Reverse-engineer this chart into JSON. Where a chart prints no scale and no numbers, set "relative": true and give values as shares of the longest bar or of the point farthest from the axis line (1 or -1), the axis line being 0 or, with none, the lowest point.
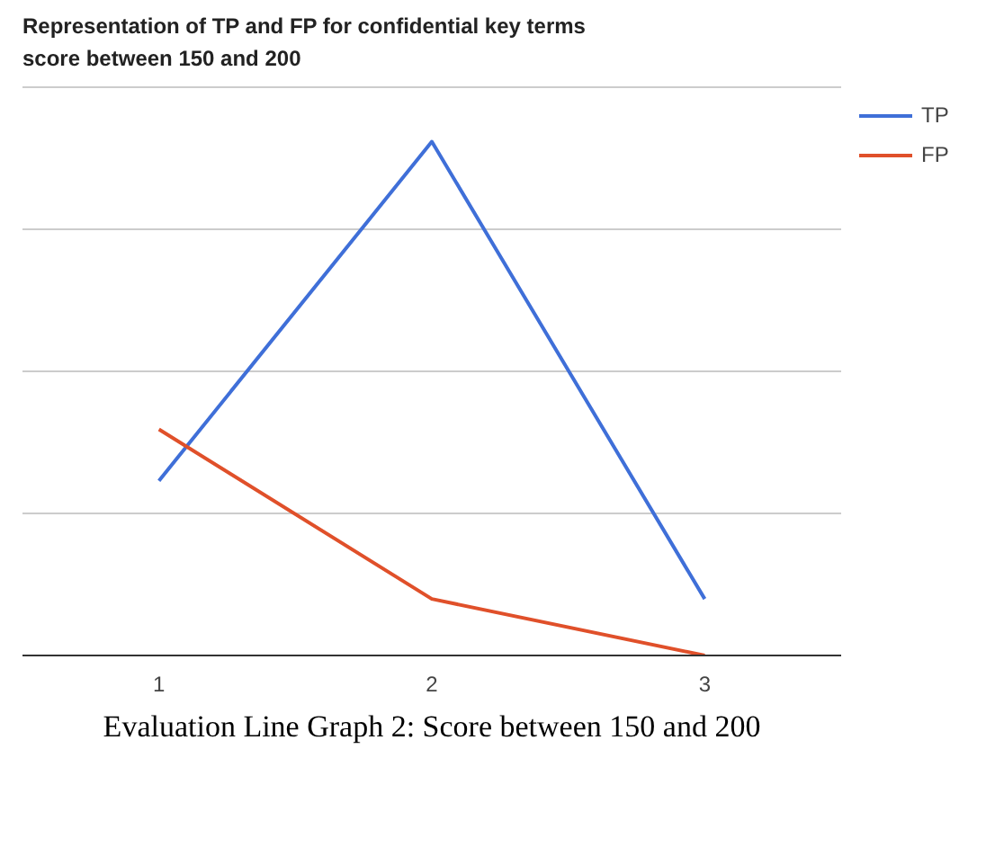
{
  "chart_data": {
    "type": "line",
    "title": "Representation of TP and FP for confidential key terms\nscore between 150 and 200",
    "categories": [
      "1",
      "2",
      "3"
    ],
    "relative": true,
    "series": [
      {
        "name": "TP",
        "color": "#3f6fd8",
        "values": [
          0.34,
          1,
          0.11
        ]
      },
      {
        "name": "FP",
        "color": "#e0502a",
        "values": [
          0.44,
          0.11,
          0
        ]
      }
    ],
    "grid": "y",
    "legend": "right",
    "marker": "none",
    "line_style": "solid",
    "annotations": [
      "Evaluation Line Graph 2: Score between 150 and 200"
    ]
  }
}
